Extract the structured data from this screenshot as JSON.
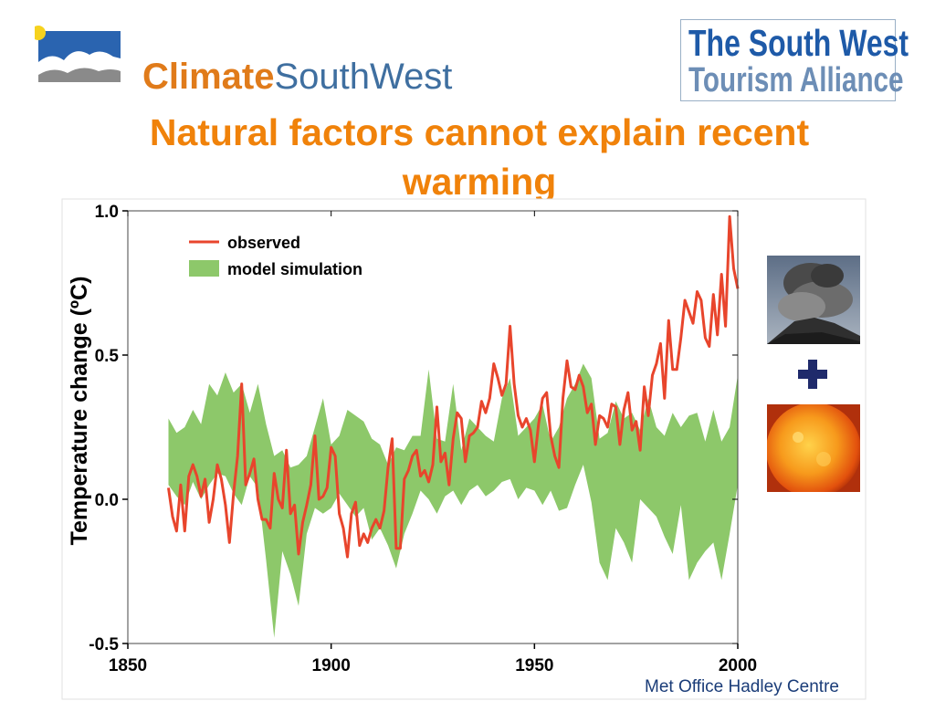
{
  "header": {
    "brand_strong": "Climate",
    "brand_light": "SouthWest",
    "alliance_line1": "The South West",
    "alliance_line2": "Tourism Alliance"
  },
  "slide": {
    "title": "Natural factors cannot explain recent warming",
    "credit": "Met Office Hadley Centre"
  },
  "side_images": [
    "volcano-eruption-image",
    "sun-image"
  ],
  "colors": {
    "title": "#f0820a",
    "observed": "#e8452c",
    "model": "#8dc86a",
    "axis": "#000000",
    "alliance_blue": "#1e5aa8"
  },
  "chart_data": {
    "type": "line",
    "title": "",
    "xlabel": "",
    "ylabel": "Temperature change (ºC)",
    "xlim": [
      1850,
      2000
    ],
    "ylim": [
      -0.5,
      1.0
    ],
    "x_ticks": [
      "1850",
      "1900",
      "1950",
      "2000"
    ],
    "y_ticks": [
      "1.0",
      "0.5",
      "0.0",
      "-0.5"
    ],
    "legend": {
      "placement": "top-left",
      "entries": [
        "observed",
        "model simulation"
      ]
    },
    "series": [
      {
        "name": "observed",
        "kind": "line",
        "x": [
          1860,
          1861,
          1862,
          1863,
          1864,
          1865,
          1866,
          1867,
          1868,
          1869,
          1870,
          1871,
          1872,
          1873,
          1874,
          1875,
          1876,
          1877,
          1878,
          1879,
          1880,
          1881,
          1882,
          1883,
          1884,
          1885,
          1886,
          1887,
          1888,
          1889,
          1890,
          1891,
          1892,
          1893,
          1894,
          1895,
          1896,
          1897,
          1898,
          1899,
          1900,
          1901,
          1902,
          1903,
          1904,
          1905,
          1906,
          1907,
          1908,
          1909,
          1910,
          1911,
          1912,
          1913,
          1914,
          1915,
          1916,
          1917,
          1918,
          1919,
          1920,
          1921,
          1922,
          1923,
          1924,
          1925,
          1926,
          1927,
          1928,
          1929,
          1930,
          1931,
          1932,
          1933,
          1934,
          1935,
          1936,
          1937,
          1938,
          1939,
          1940,
          1941,
          1942,
          1943,
          1944,
          1945,
          1946,
          1947,
          1948,
          1949,
          1950,
          1951,
          1952,
          1953,
          1954,
          1955,
          1956,
          1957,
          1958,
          1959,
          1960,
          1961,
          1962,
          1963,
          1964,
          1965,
          1966,
          1967,
          1968,
          1969,
          1970,
          1971,
          1972,
          1973,
          1974,
          1975,
          1976,
          1977,
          1978,
          1979,
          1980,
          1981,
          1982,
          1983,
          1984,
          1985,
          1986,
          1987,
          1988,
          1989,
          1990,
          1991,
          1992,
          1993,
          1994,
          1995,
          1996,
          1997,
          1998,
          1999,
          2000
        ],
        "values": [
          0.04,
          -0.06,
          -0.11,
          0.05,
          -0.11,
          0.08,
          0.12,
          0.08,
          0.01,
          0.07,
          -0.08,
          0.0,
          0.12,
          0.07,
          -0.02,
          -0.15,
          0.02,
          0.15,
          0.4,
          0.05,
          0.09,
          0.14,
          0.0,
          -0.07,
          -0.07,
          -0.1,
          0.09,
          0.0,
          -0.03,
          0.17,
          -0.05,
          -0.02,
          -0.19,
          -0.08,
          -0.02,
          0.05,
          0.22,
          0.0,
          0.01,
          0.04,
          0.18,
          0.15,
          -0.05,
          -0.1,
          -0.2,
          -0.05,
          -0.01,
          -0.16,
          -0.12,
          -0.15,
          -0.1,
          -0.07,
          -0.1,
          -0.04,
          0.11,
          0.21,
          -0.17,
          -0.17,
          0.07,
          0.1,
          0.15,
          0.17,
          0.08,
          0.1,
          0.06,
          0.12,
          0.32,
          0.13,
          0.16,
          0.05,
          0.21,
          0.3,
          0.28,
          0.13,
          0.22,
          0.23,
          0.25,
          0.34,
          0.3,
          0.35,
          0.47,
          0.42,
          0.36,
          0.4,
          0.6,
          0.4,
          0.29,
          0.25,
          0.28,
          0.24,
          0.13,
          0.26,
          0.35,
          0.37,
          0.22,
          0.15,
          0.11,
          0.35,
          0.48,
          0.39,
          0.38,
          0.43,
          0.39,
          0.3,
          0.33,
          0.19,
          0.29,
          0.28,
          0.25,
          0.33,
          0.32,
          0.19,
          0.31,
          0.37,
          0.24,
          0.27,
          0.17,
          0.39,
          0.29,
          0.43,
          0.47,
          0.54,
          0.35,
          0.62,
          0.45,
          0.45,
          0.56,
          0.69,
          0.65,
          0.61,
          0.72,
          0.69,
          0.56,
          0.53,
          0.71,
          0.57,
          0.78,
          0.6,
          0.98,
          0.8,
          0.73
        ]
      },
      {
        "name": "model simulation",
        "kind": "band",
        "x": [
          1860,
          1862,
          1864,
          1866,
          1868,
          1870,
          1872,
          1874,
          1876,
          1878,
          1880,
          1882,
          1884,
          1886,
          1888,
          1890,
          1892,
          1894,
          1896,
          1898,
          1900,
          1902,
          1904,
          1906,
          1908,
          1910,
          1912,
          1914,
          1916,
          1918,
          1920,
          1922,
          1924,
          1926,
          1928,
          1930,
          1932,
          1934,
          1936,
          1938,
          1940,
          1942,
          1944,
          1946,
          1948,
          1950,
          1952,
          1954,
          1956,
          1958,
          1960,
          1962,
          1964,
          1966,
          1968,
          1970,
          1972,
          1974,
          1976,
          1978,
          1980,
          1982,
          1984,
          1986,
          1988,
          1990,
          1992,
          1994,
          1996,
          1998,
          2000
        ],
        "upper": [
          0.28,
          0.23,
          0.25,
          0.31,
          0.26,
          0.4,
          0.36,
          0.44,
          0.37,
          0.4,
          0.3,
          0.4,
          0.26,
          0.15,
          0.17,
          0.11,
          0.12,
          0.15,
          0.25,
          0.35,
          0.19,
          0.22,
          0.31,
          0.29,
          0.27,
          0.21,
          0.19,
          0.12,
          0.18,
          0.17,
          0.22,
          0.22,
          0.45,
          0.21,
          0.2,
          0.4,
          0.17,
          0.28,
          0.25,
          0.22,
          0.2,
          0.35,
          0.42,
          0.22,
          0.25,
          0.28,
          0.33,
          0.2,
          0.25,
          0.35,
          0.4,
          0.47,
          0.42,
          0.21,
          0.23,
          0.34,
          0.28,
          0.3,
          0.24,
          0.35,
          0.25,
          0.22,
          0.3,
          0.25,
          0.29,
          0.3,
          0.2,
          0.31,
          0.2,
          0.25,
          0.43
        ],
        "lower": [
          0.05,
          0.01,
          -0.02,
          0.06,
          0.0,
          0.05,
          0.09,
          0.08,
          0.02,
          -0.02,
          0.08,
          0.04,
          -0.21,
          -0.48,
          -0.18,
          -0.26,
          -0.37,
          -0.12,
          -0.03,
          -0.05,
          -0.03,
          0.02,
          -0.02,
          -0.06,
          -0.03,
          -0.14,
          -0.1,
          -0.16,
          -0.24,
          -0.12,
          -0.05,
          0.03,
          0.0,
          -0.05,
          0.01,
          0.03,
          -0.02,
          0.03,
          0.05,
          0.01,
          0.03,
          0.06,
          0.07,
          0.0,
          0.04,
          0.03,
          -0.02,
          0.03,
          -0.04,
          -0.03,
          0.05,
          0.12,
          -0.01,
          -0.22,
          -0.28,
          -0.1,
          -0.15,
          -0.22,
          0.0,
          -0.03,
          -0.06,
          -0.13,
          -0.19,
          -0.02,
          -0.28,
          -0.22,
          -0.18,
          -0.15,
          -0.28,
          -0.12,
          0.05
        ]
      }
    ]
  }
}
